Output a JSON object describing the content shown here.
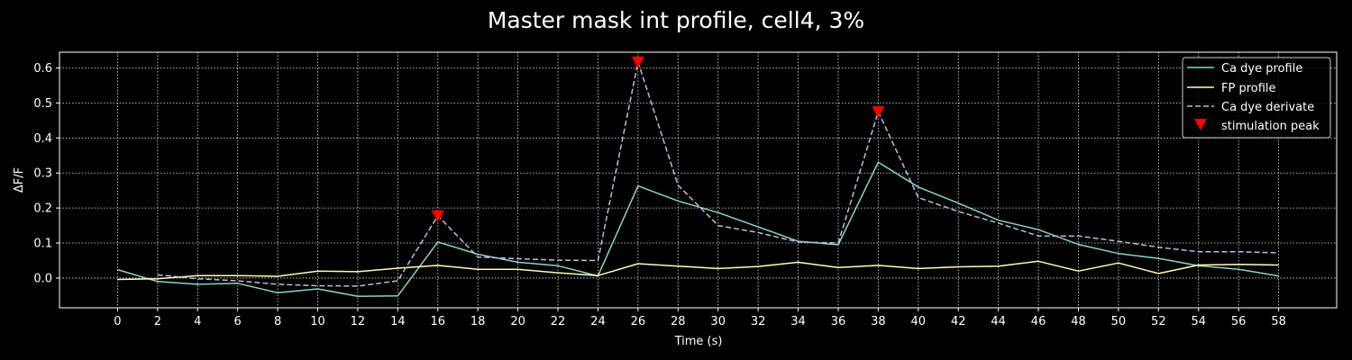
{
  "chart_data": {
    "type": "line",
    "title": "Master mask int profile, cell4, 3%",
    "xlabel": "Time (s)",
    "ylabel": "ΔF/F",
    "xlim": [
      -2.9,
      60.9
    ],
    "ylim": [
      -0.085,
      0.645
    ],
    "x_ticks": [
      0,
      2,
      4,
      6,
      8,
      10,
      12,
      14,
      16,
      18,
      20,
      22,
      24,
      26,
      28,
      30,
      32,
      34,
      36,
      38,
      40,
      42,
      44,
      46,
      48,
      50,
      52,
      54,
      56,
      58
    ],
    "y_ticks": [
      0.0,
      0.1,
      0.2,
      0.3,
      0.4,
      0.5,
      0.6
    ],
    "y_tick_labels": [
      "0.0",
      "0.1",
      "0.2",
      "0.3",
      "0.4",
      "0.5",
      "0.6"
    ],
    "grid": true,
    "legend_position": "top-right",
    "background": "#000000",
    "series": [
      {
        "name": "Ca dye profile",
        "style": "solid",
        "color": "#8dd3c7",
        "x": [
          0,
          2,
          4,
          6,
          8,
          10,
          12,
          14,
          16,
          18,
          20,
          22,
          24,
          26,
          28,
          30,
          32,
          34,
          36,
          38,
          40,
          42,
          44,
          46,
          48,
          50,
          52,
          54,
          56,
          58
        ],
        "y": [
          0.024,
          -0.01,
          -0.018,
          -0.015,
          -0.042,
          -0.031,
          -0.052,
          -0.051,
          0.103,
          0.068,
          0.045,
          0.035,
          0.006,
          0.263,
          0.22,
          0.187,
          0.146,
          0.105,
          0.095,
          0.331,
          0.26,
          0.214,
          0.165,
          0.138,
          0.096,
          0.07,
          0.056,
          0.035,
          0.025,
          0.006
        ]
      },
      {
        "name": "FP profile",
        "style": "solid",
        "color": "#ffffb3",
        "x": [
          0,
          2,
          4,
          6,
          8,
          10,
          12,
          14,
          16,
          18,
          20,
          22,
          24,
          26,
          28,
          30,
          32,
          34,
          36,
          38,
          40,
          42,
          44,
          46,
          48,
          50,
          52,
          54,
          56,
          58
        ],
        "y": [
          -0.004,
          -0.002,
          0.007,
          0.007,
          0.005,
          0.02,
          0.018,
          0.028,
          0.036,
          0.025,
          0.025,
          0.015,
          0.007,
          0.041,
          0.034,
          0.027,
          0.033,
          0.045,
          0.03,
          0.036,
          0.027,
          0.032,
          0.034,
          0.048,
          0.02,
          0.043,
          0.013,
          0.037,
          0.039,
          0.037
        ]
      },
      {
        "name": "Ca dye derivate",
        "style": "dashed",
        "color": "#bebada",
        "x": [
          2,
          4,
          6,
          8,
          10,
          12,
          14,
          16,
          18,
          20,
          22,
          24,
          26,
          28,
          30,
          32,
          34,
          36,
          38,
          40,
          42,
          44,
          46,
          48,
          50,
          52,
          54,
          56,
          58
        ],
        "y": [
          0.009,
          -0.002,
          -0.008,
          -0.018,
          -0.022,
          -0.023,
          -0.008,
          0.178,
          0.06,
          0.055,
          0.051,
          0.05,
          0.617,
          0.265,
          0.15,
          0.13,
          0.103,
          0.1,
          0.475,
          0.23,
          0.19,
          0.157,
          0.12,
          0.12,
          0.105,
          0.088,
          0.075,
          0.075,
          0.072
        ]
      }
    ],
    "markers": {
      "name": "stimulation peak",
      "color": "#ff0000",
      "shape": "triangle-down",
      "x": [
        16,
        26,
        38
      ],
      "y": [
        0.178,
        0.617,
        0.475
      ]
    },
    "legend": [
      "Ca dye profile",
      "FP profile",
      "Ca dye derivate",
      "stimulation peak"
    ]
  }
}
